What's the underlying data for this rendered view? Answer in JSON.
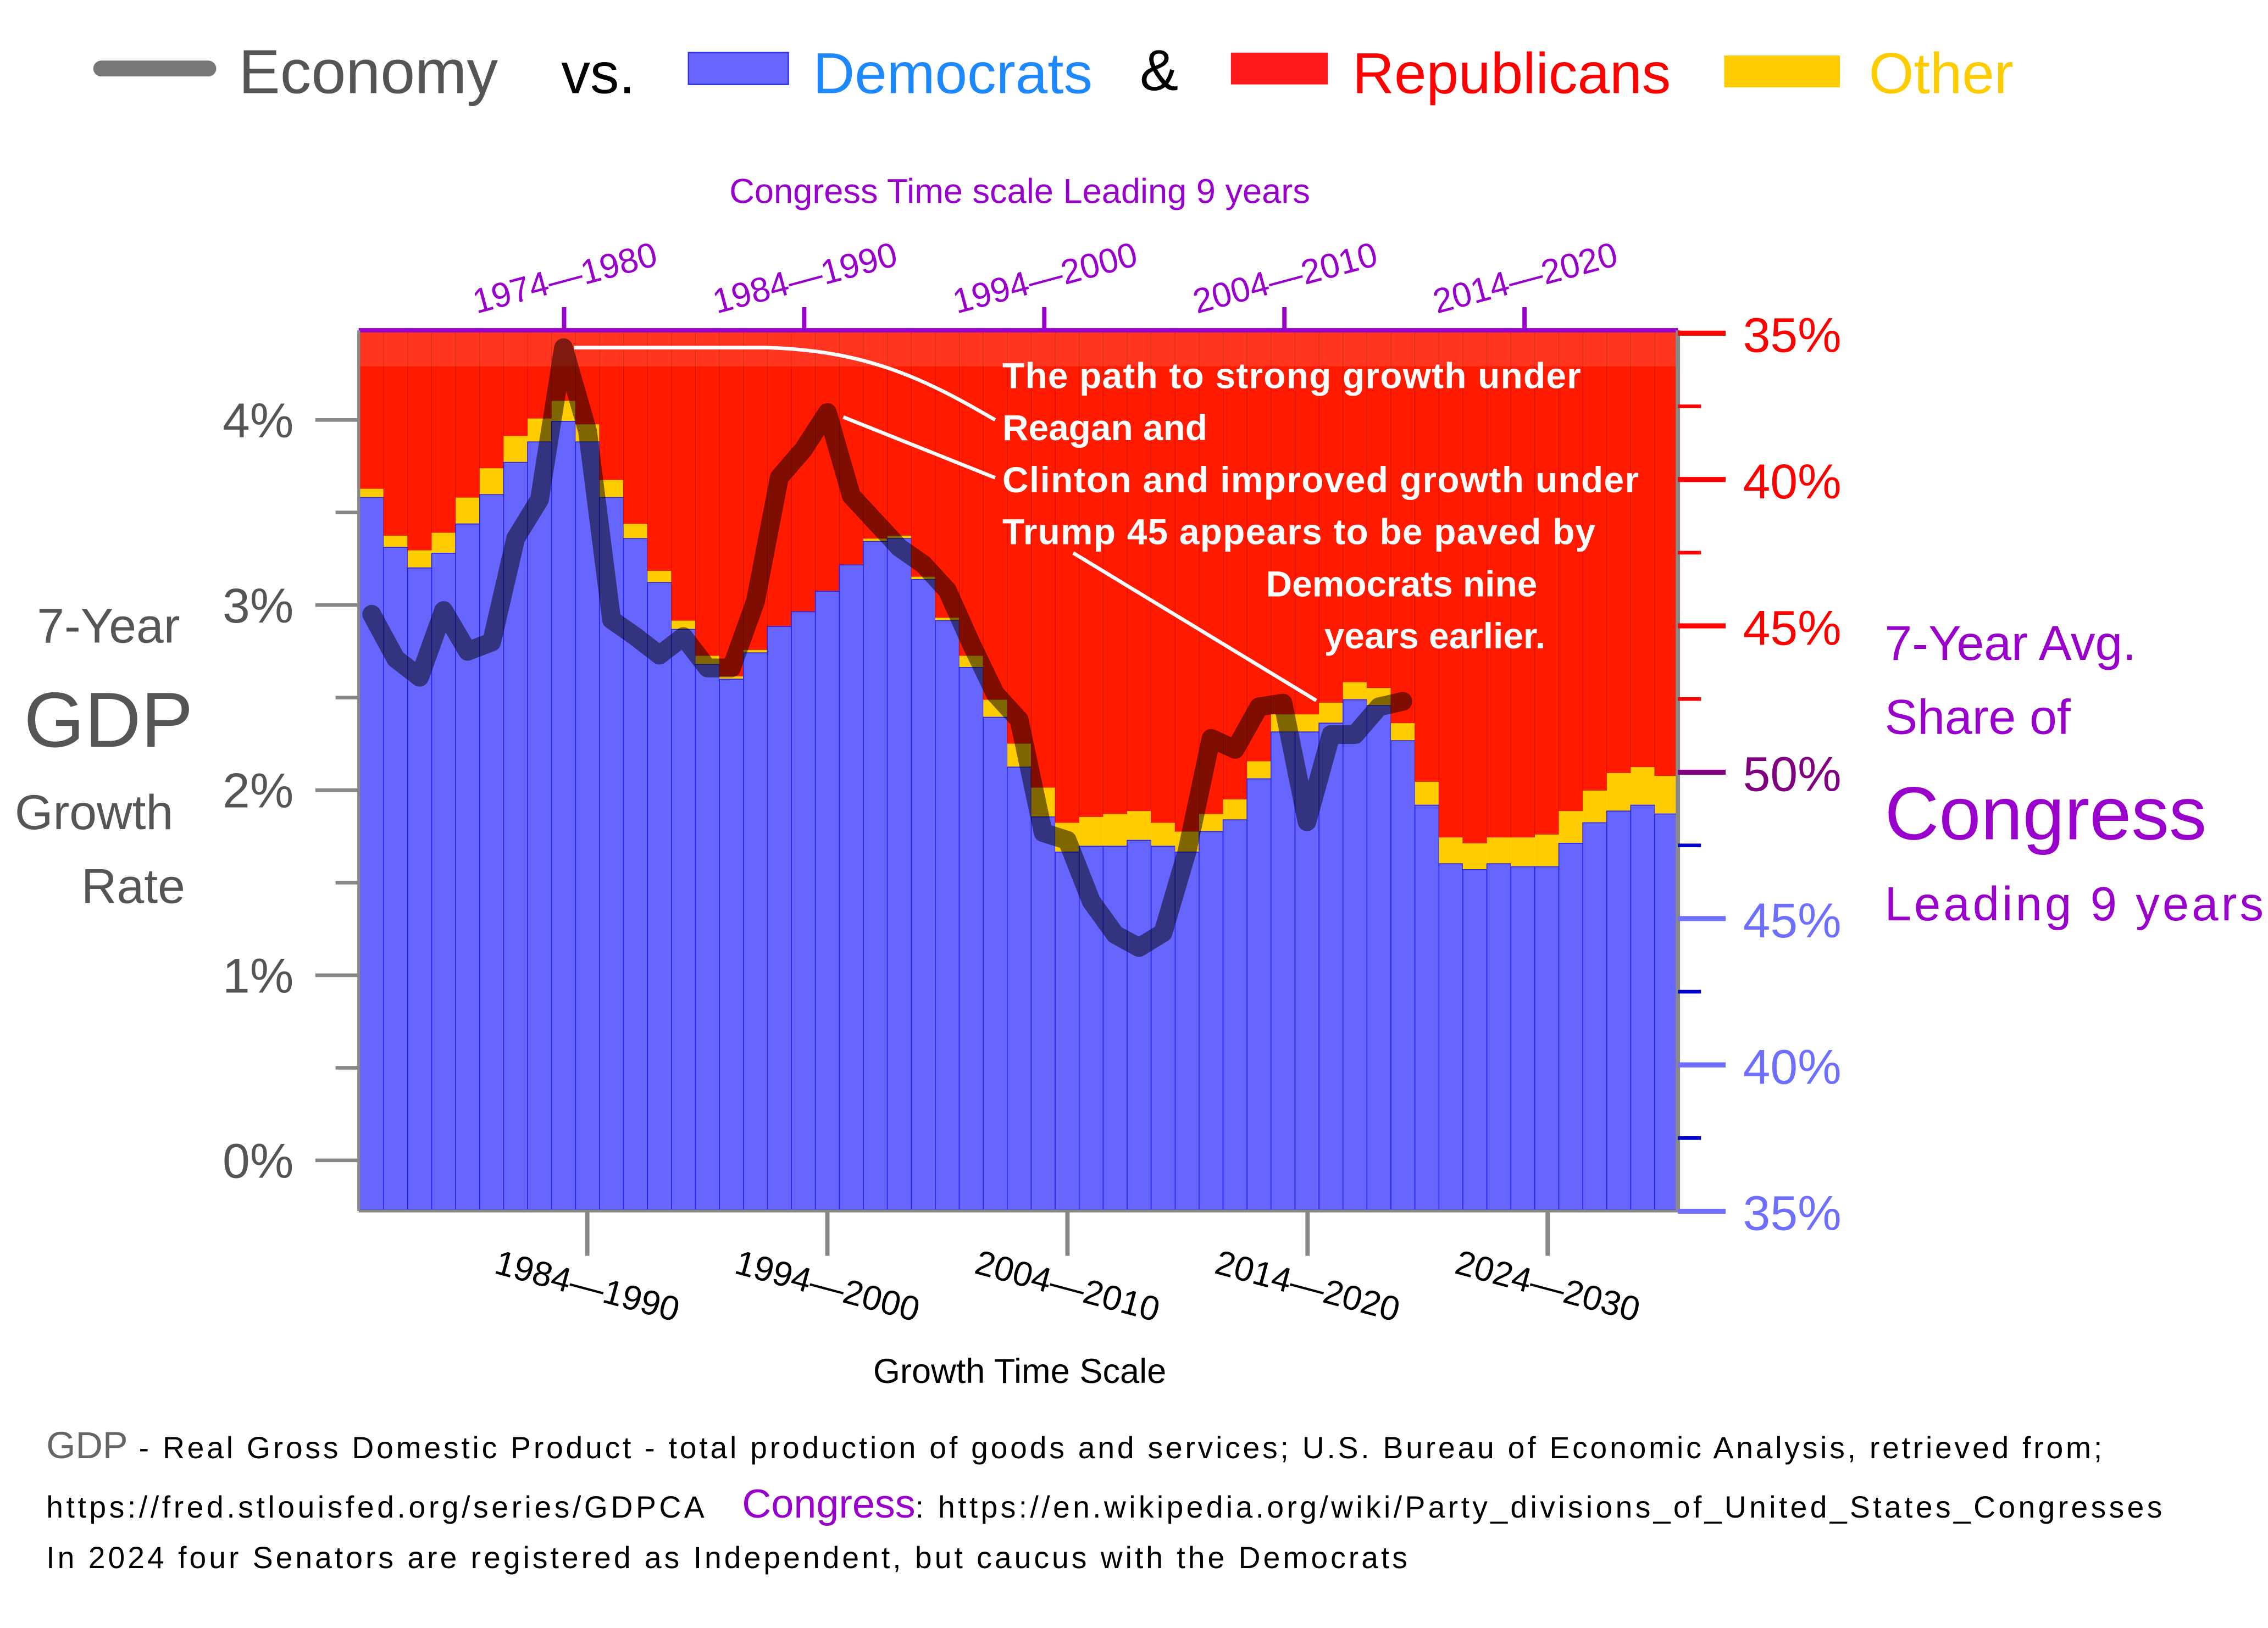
{
  "legend": {
    "economy": "Economy",
    "vs": "vs.",
    "democrats": "Democrats",
    "amp": "&",
    "republicans": "Republicans",
    "other": "Other"
  },
  "colors": {
    "democrats": "#6666ff",
    "democrats_text": "#1e88ff",
    "republicans": "#ff1a00",
    "republicans_text": "#ff0000",
    "other": "#ffcc00",
    "economy_line": "#000000",
    "congress_purple": "#9900cc",
    "axis_gray": "#555555"
  },
  "top_axis": {
    "title": "Congress Time scale Leading 9 years",
    "ticks": [
      "1974—1980",
      "1984—1990",
      "1994—2000",
      "2004—2010",
      "2014—2020"
    ]
  },
  "bottom_axis": {
    "title": "Growth Time Scale",
    "ticks": [
      "1984—1990",
      "1994—2000",
      "2004—2010",
      "2014—2020",
      "2024—2030"
    ]
  },
  "left_axis": {
    "title_line1": "7-Year",
    "title_line2": "GDP",
    "title_line3": "Growth",
    "title_line4": "Rate",
    "ticks": [
      "4%",
      "3%",
      "2%",
      "1%",
      "0%"
    ]
  },
  "right_axis": {
    "title_line1": "7-Year Avg.",
    "title_line2": "Share of",
    "title_line3": "Congress",
    "title_line4": "Leading 9 years",
    "ticks": [
      "35%",
      "40%",
      "45%",
      "50%",
      "45%",
      "40%",
      "35%"
    ]
  },
  "annotation": {
    "line1": "The path to strong growth under",
    "line2": "Reagan and",
    "line3": "Clinton and improved growth under",
    "line4": "Trump 45 appears to be paved by",
    "line5": "Democrats nine",
    "line6": "years earlier."
  },
  "footer": {
    "gdp_label": "GDP",
    "gdp_text": " - Real Gross Domestic Product - total production of goods and services; U.S. Bureau of Economic Analysis, retrieved from;",
    "gdp_url": "https://fred.stlouisfed.org/series/GDPCA",
    "congress_label": "Congress",
    "congress_text": ": https://en.wikipedia.org/wiki/Party_divisions_of_United_States_Congresses",
    "note": "In 2024 four Senators are registered as Independent, but caucus with the Democrats"
  },
  "chart_data": {
    "type": "bar",
    "stacked": true,
    "x_label": "Growth Time Scale",
    "x_growth_window_end": [
      1981,
      1982,
      1983,
      1984,
      1985,
      1986,
      1987,
      1988,
      1989,
      1990,
      1991,
      1992,
      1993,
      1994,
      1995,
      1996,
      1997,
      1998,
      1999,
      2000,
      2001,
      2002,
      2003,
      2004,
      2005,
      2006,
      2007,
      2008,
      2009,
      2010,
      2011,
      2012,
      2013,
      2014,
      2015,
      2016,
      2017,
      2018,
      2019,
      2020,
      2021,
      2022,
      2023,
      2024,
      2025,
      2026,
      2027,
      2028,
      2029,
      2030,
      2031,
      2032,
      2033,
      2034,
      2035
    ],
    "congress_share_axis": {
      "range_percent": [
        35,
        65
      ],
      "middle": 50
    },
    "series": [
      {
        "name": "Democrats",
        "values": [
          59.3,
          57.6,
          56.9,
          57.4,
          58.4,
          59.4,
          60.5,
          61.2,
          61.9,
          61.2,
          59.3,
          57.9,
          56.4,
          54.8,
          53.6,
          53.1,
          54.0,
          54.9,
          55.4,
          56.1,
          57.0,
          57.8,
          57.9,
          56.5,
          55.1,
          53.5,
          51.8,
          50.1,
          48.4,
          47.2,
          47.4,
          47.4,
          47.6,
          47.4,
          47.2,
          47.9,
          48.3,
          49.7,
          51.3,
          51.3,
          51.6,
          52.4,
          52.2,
          51.0,
          48.8,
          46.8,
          46.6,
          46.8,
          46.7,
          46.7,
          47.5,
          48.2,
          48.6,
          48.8,
          48.5
        ]
      },
      {
        "name": "Other",
        "values": [
          0.3,
          0.4,
          0.6,
          0.7,
          0.9,
          0.9,
          0.9,
          0.8,
          0.7,
          0.6,
          0.6,
          0.5,
          0.4,
          0.3,
          0.3,
          0.1,
          0.1,
          0,
          0,
          0,
          0,
          0.1,
          0.1,
          0.1,
          0.1,
          0.4,
          0.6,
          0.8,
          1.0,
          1.0,
          1.0,
          1.1,
          1.0,
          0.8,
          0.7,
          0.6,
          0.7,
          0.6,
          0.6,
          0.6,
          0.7,
          0.6,
          0.6,
          0.6,
          0.8,
          0.9,
          0.9,
          0.9,
          1.0,
          1.1,
          1.1,
          1.1,
          1.3,
          1.3,
          1.3
        ]
      },
      {
        "name": "Republicans",
        "values": "remainder to 100%"
      }
    ],
    "economy": {
      "name": "Economy",
      "ylabel": "7-Year GDP Growth Rate",
      "ylim_percent": [
        0,
        4.5
      ],
      "values": [
        2.95,
        2.71,
        2.61,
        2.97,
        2.75,
        2.8,
        3.36,
        3.57,
        4.39,
        3.94,
        2.92,
        2.83,
        2.73,
        2.83,
        2.66,
        2.66,
        3.02,
        3.69,
        3.84,
        4.04,
        3.59,
        3.45,
        3.31,
        3.22,
        3.08,
        2.79,
        2.52,
        2.38,
        1.77,
        1.73,
        1.4,
        1.22,
        1.15,
        1.23,
        1.67,
        2.28,
        2.22,
        2.45,
        2.47,
        1.83,
        2.3,
        2.3,
        2.45,
        2.48
      ]
    }
  }
}
